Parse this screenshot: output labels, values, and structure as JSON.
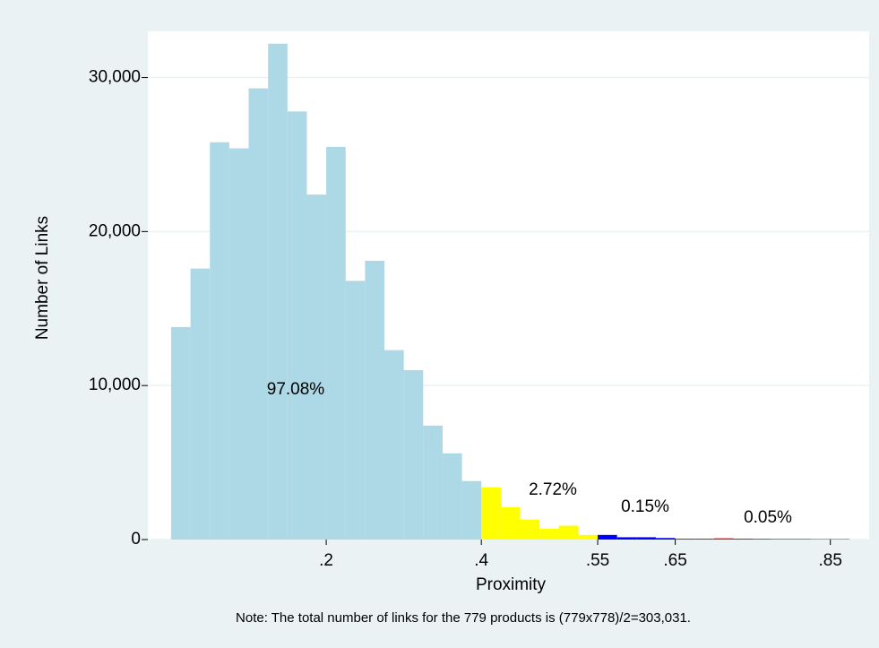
{
  "chart_data": {
    "type": "histogram",
    "note": "Note: The total number of links for the 779 products is (779x778)/2=303,031.",
    "x_label": "Proximity",
    "y_label": "Number of Links",
    "series": [
      {
        "color": "#add8e6",
        "label": "97.08%",
        "bins": [
          0,
          0.025,
          0.05,
          0.075,
          0.1,
          0.125,
          0.15,
          0.175,
          0.2,
          0.225,
          0.25,
          0.275,
          0.3,
          0.325,
          0.35,
          0.375,
          0.4
        ],
        "values": [
          13800,
          17600,
          25800,
          25400,
          29300,
          32200,
          27800,
          22400,
          25500,
          16800,
          18100,
          12300,
          11000,
          7400,
          5600,
          3800
        ]
      },
      {
        "color": "#ffff00",
        "label": "2.72%",
        "bins": [
          0.4,
          0.425,
          0.45,
          0.475,
          0.5,
          0.525,
          0.55
        ],
        "values": [
          3400,
          2100,
          1300,
          700,
          900,
          300
        ]
      },
      {
        "color": "#0000ff",
        "label": "0.15%",
        "bins": [
          0.55,
          0.575,
          0.6,
          0.625,
          0.65
        ],
        "values": [
          300,
          150,
          150,
          100
        ]
      },
      {
        "color": "#ff0000",
        "label": "0.05%",
        "bins": [
          0.65,
          0.675,
          0.7,
          0.725,
          0.75,
          0.775,
          0.8,
          0.825,
          0.85,
          0.875
        ],
        "values": [
          60,
          60,
          80,
          60,
          50,
          40,
          40,
          30,
          30
        ]
      }
    ],
    "xlim": [
      -0.03,
      0.9
    ],
    "ylim": [
      0,
      33000
    ],
    "xticks": [
      {
        "value": 0.2,
        "label": ".2"
      },
      {
        "value": 0.4,
        "label": ".4"
      },
      {
        "value": 0.55,
        "label": ".55"
      },
      {
        "value": 0.65,
        "label": ".65"
      },
      {
        "value": 0.85,
        "label": ".85"
      }
    ],
    "yticks": [
      0,
      {
        "value": 10000,
        "label": "10,000"
      },
      {
        "value": 20000,
        "label": "20,000"
      },
      {
        "value": 30000,
        "label": "30,000"
      }
    ],
    "grid": true
  }
}
